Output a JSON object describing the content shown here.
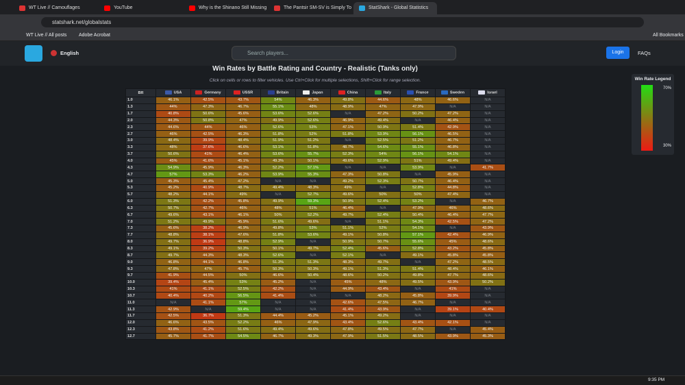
{
  "browser": {
    "tabs": [
      "WT Live // Camouflages",
      "YouTube",
      "Why is the Shinano Still Missing",
      "The Pantsir SM-SV is Simply To",
      "StatShark - Global Statistics"
    ],
    "url": "statshark.net/globalstats",
    "bookmarks": [
      "WT Live // All posts",
      "Adobe Acrobat"
    ],
    "all_bookmarks": "All Bookmarks"
  },
  "header": {
    "language": "English",
    "search_placeholder": "Search players...",
    "login": "Login",
    "faqs": "FAQs"
  },
  "title": "Win Rates by Battle Rating and Country - Realistic (Tanks only)",
  "subtitle": "Click on cells or rows to filter vehicles. Use Ctrl+Click for multiple selections, Shift+Click for range selection.",
  "legend": {
    "title": "Win Rate Legend",
    "high": "70%",
    "low": "30%"
  },
  "table": {
    "columns": [
      "BR",
      "USA",
      "Germany",
      "USSR",
      "Britain",
      "Japan",
      "China",
      "Italy",
      "France",
      "Sweden",
      "Israel"
    ],
    "rows": [
      [
        "1.0",
        "46.1%",
        "42.5%",
        "43.7%",
        "54%",
        "46.3%",
        "49.8%",
        "44.6%",
        "48%",
        "46.6%",
        "N/A"
      ],
      [
        "1.3",
        "44%",
        "47.3%",
        "46.7%",
        "55.1%",
        "48%",
        "48.9%",
        "47%",
        "47.9%",
        "N/A",
        "N/A"
      ],
      [
        "1.7",
        "40.8%",
        "50.6%",
        "45.6%",
        "53.6%",
        "52.6%",
        "N/A",
        "47.2%",
        "50.2%",
        "47.2%",
        "N/A"
      ],
      [
        "2.0",
        "44.3%",
        "50.8%",
        "47%",
        "49.9%",
        "52.6%",
        "46.9%",
        "49.4%",
        "N/A",
        "46.4%",
        "N/A"
      ],
      [
        "2.3",
        "44.6%",
        "44%",
        "46%",
        "52.6%",
        "53%",
        "47.1%",
        "50.9%",
        "51.4%",
        "42.9%",
        "N/A"
      ],
      [
        "2.7",
        "46%",
        "42.5%",
        "46.3%",
        "51.8%",
        "52%",
        "51.8%",
        "53.9%",
        "56.1%",
        "46.5%",
        "N/A"
      ],
      [
        "3.0",
        "48.4%",
        "39.9%",
        "48.4%",
        "51.9%",
        "51.2%",
        "N/A",
        "52.5%",
        "51.2%",
        "46.7%",
        "N/A"
      ],
      [
        "3.3",
        "48%",
        "37.6%",
        "46.6%",
        "53.1%",
        "51.8%",
        "48.7%",
        "54.6%",
        "55.1%",
        "46.8%",
        "N/A"
      ],
      [
        "3.7",
        "50.6%",
        "41%",
        "46.4%",
        "53.6%",
        "55.7%",
        "52.3%",
        "54%",
        "56.1%",
        "54.1%",
        "N/A"
      ],
      [
        "4.0",
        "45%",
        "41.6%",
        "45.1%",
        "49.3%",
        "50.1%",
        "49.6%",
        "52.9%",
        "51%",
        "49.4%",
        "N/A"
      ],
      [
        "4.3",
        "54.9%",
        "45.9%",
        "46.3%",
        "52.2%",
        "57.1%",
        "N/A",
        "N/A",
        "53.9%",
        "N/A",
        "41.7%"
      ],
      [
        "4.7",
        "57%",
        "53.3%",
        "46.2%",
        "53.9%",
        "55.3%",
        "47.3%",
        "50.8%",
        "N/A",
        "45.9%",
        "N/A"
      ],
      [
        "5.0",
        "45.3%",
        "45.4%",
        "47.2%",
        "N/A",
        "N/A",
        "49.2%",
        "52.3%",
        "50.7%",
        "46.4%",
        "N/A"
      ],
      [
        "5.3",
        "45.2%",
        "40.9%",
        "48.7%",
        "49.4%",
        "48.3%",
        "49%",
        "N/A",
        "52.8%",
        "44.8%",
        "N/A"
      ],
      [
        "5.7",
        "48.2%",
        "44.1%",
        "49%",
        "N/A",
        "52.7%",
        "49.6%",
        "50%",
        "50%",
        "47.4%",
        "N/A"
      ],
      [
        "6.0",
        "51.3%",
        "42.2%",
        "45.8%",
        "49.9%",
        "59.3%",
        "50.9%",
        "52.4%",
        "53.2%",
        "N/A",
        "46.7%"
      ],
      [
        "6.3",
        "50.7%",
        "42.7%",
        "46%",
        "48%",
        "51%",
        "46.4%",
        "N/A",
        "47.9%",
        "46%",
        "48.6%"
      ],
      [
        "6.7",
        "49.6%",
        "43.1%",
        "46.1%",
        "50%",
        "52.2%",
        "49.7%",
        "52.4%",
        "50.4%",
        "46.4%",
        "47.7%"
      ],
      [
        "7.0",
        "51.2%",
        "49.9%",
        "45.9%",
        "51.6%",
        "49.6%",
        "N/A",
        "51.1%",
        "54.3%",
        "42.5%",
        "47.2%"
      ],
      [
        "7.3",
        "45.6%",
        "38.2%",
        "46.9%",
        "49.8%",
        "53%",
        "51.1%",
        "52%",
        "54.1%",
        "N/A",
        "43.9%"
      ],
      [
        "7.7",
        "48.8%",
        "38.1%",
        "47.6%",
        "51.8%",
        "53.6%",
        "49.1%",
        "50.8%",
        "57.1%",
        "42.4%",
        "46.9%"
      ],
      [
        "8.0",
        "49.7%",
        "36.9%",
        "48.8%",
        "52.9%",
        "N/A",
        "50.9%",
        "50.7%",
        "55.6%",
        "45%",
        "48.6%"
      ],
      [
        "8.3",
        "49.1%",
        "39.2%",
        "50.3%",
        "50.1%",
        "49.7%",
        "52.4%",
        "45.6%",
        "52.8%",
        "43.2%",
        "45.8%"
      ],
      [
        "8.7",
        "49.7%",
        "44.3%",
        "48.3%",
        "52.6%",
        "N/A",
        "52.1%",
        "N/A",
        "49.1%",
        "45.8%",
        "45.8%"
      ],
      [
        "9.0",
        "46.8%",
        "44.1%",
        "46.8%",
        "51.3%",
        "51.3%",
        "48.3%",
        "49.7%",
        "N/A",
        "47.2%",
        "48.5%"
      ],
      [
        "9.3",
        "47.8%",
        "47%",
        "45.7%",
        "50.3%",
        "50.3%",
        "49.1%",
        "51.3%",
        "51.4%",
        "48.4%",
        "46.1%"
      ],
      [
        "9.7",
        "41.9%",
        "44.5%",
        "50%",
        "46.6%",
        "50.4%",
        "48.6%",
        "50.2%",
        "49.8%",
        "47.7%",
        "48.6%"
      ],
      [
        "10.0",
        "39.4%",
        "45.4%",
        "53%",
        "45.2%",
        "N/A",
        "45%",
        "48%",
        "49.5%",
        "43.9%",
        "50.2%"
      ],
      [
        "10.3",
        "41%",
        "41.1%",
        "52.5%",
        "42.2%",
        "N/A",
        "44.9%",
        "43.4%",
        "N/A",
        "41%",
        "N/A"
      ],
      [
        "10.7",
        "40.4%",
        "40.2%",
        "56.5%",
        "41.4%",
        "N/A",
        "N/A",
        "48.2%",
        "45.8%",
        "39.9%",
        "N/A"
      ],
      [
        "11.0",
        "N/A",
        "41.1%",
        "57%",
        "N/A",
        "N/A",
        "42.6%",
        "47.5%",
        "46.7%",
        "N/A",
        "N/A"
      ],
      [
        "11.3",
        "42.9%",
        "N/A",
        "59.4%",
        "N/A",
        "N/A",
        "41.4%",
        "43.9%",
        "N/A",
        "39.1%",
        "40.4%"
      ],
      [
        "11.7",
        "42.5%",
        "36.7%",
        "51.3%",
        "44.4%",
        "45.2%",
        "45.1%",
        "49.2%",
        "N/A",
        "N/A",
        "N/A"
      ],
      [
        "12.0",
        "46.6%",
        "43.5%",
        "52.2%",
        "46%",
        "47.9%",
        "43.4%",
        "52.6%",
        "43.4%",
        "42.1%",
        "N/A"
      ],
      [
        "12.3",
        "43.8%",
        "41.2%",
        "51.6%",
        "49.4%",
        "49.6%",
        "47.8%",
        "49.5%",
        "47.7%",
        "N/A",
        "45.4%"
      ],
      [
        "12.7",
        "45.7%",
        "41.7%",
        "54.5%",
        "46.7%",
        "49.3%",
        "47.9%",
        "51.5%",
        "48.5%",
        "43.9%",
        "45.3%"
      ]
    ]
  },
  "taskbar": {
    "time": "9:35 PM"
  }
}
